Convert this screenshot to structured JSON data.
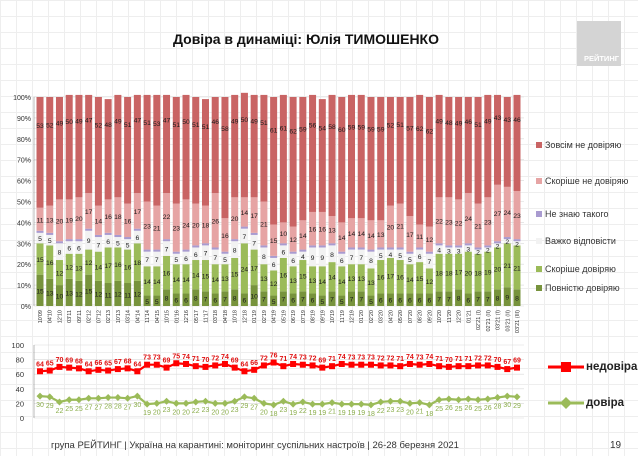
{
  "title": "Довіра в динаміці: Юлія ТИМОШЕНКО",
  "logo_text": "РЕЙТИНГ",
  "footer": "група РЕЙТИНГ | Україна на карантині: моніторинг суспільних настроїв | 26-28 березня 2021",
  "page_number": "19",
  "chart_data": [
    {
      "type": "bar",
      "stacked": true,
      "ylim": [
        0,
        100
      ],
      "yticks": [
        "0%",
        "10%",
        "20%",
        "30%",
        "40%",
        "50%",
        "60%",
        "70%",
        "80%",
        "90%",
        "100%"
      ],
      "grid": true,
      "legend_position": "right",
      "categories": [
        "10'09",
        "04'10",
        "12'10",
        "03'11",
        "09'11",
        "02'12",
        "07'12",
        "02'13",
        "10'13",
        "03'14",
        "04'14",
        "11'14",
        "04'15",
        "10'15",
        "01'16",
        "12'16",
        "05'17",
        "11'17",
        "03'18",
        "04'18",
        "10'18",
        "12'18",
        "01'19",
        "02'19",
        "04'19",
        "05'19",
        "06'19",
        "07'19",
        "08'19",
        "09'19",
        "10'19",
        "11'19",
        "12'19",
        "01'20",
        "02'20",
        "03'20",
        "04'20",
        "05'20",
        "07'20",
        "08'20",
        "09'20",
        "10'20",
        "11'20",
        "12'20",
        "01'21",
        "02'21 (I)",
        "02'21 (II)",
        "03'21 (I)",
        "03'21 (II)",
        "03'21 (III)"
      ],
      "series": [
        {
          "name": "Повністю довіряю",
          "color": "#77933c",
          "labeled": true,
          "values": [
            15,
            13,
            10,
            13,
            12,
            15,
            12,
            11,
            12,
            11,
            12,
            5,
            5,
            8,
            6,
            6,
            8,
            7,
            6,
            7,
            8,
            6,
            10,
            7,
            5,
            7,
            6,
            7,
            6,
            5,
            7,
            5,
            7,
            7,
            5,
            6,
            6,
            6,
            6,
            6,
            6,
            7,
            7,
            8,
            6,
            7,
            7,
            8,
            9,
            8
          ]
        },
        {
          "name": "Скоріше довіряю",
          "color": "#9bbb59",
          "labeled": true,
          "values": [
            15,
            16,
            12,
            12,
            13,
            12,
            14,
            17,
            16,
            16,
            18,
            14,
            14,
            16,
            14,
            14,
            14,
            15,
            14,
            13,
            15,
            24,
            17,
            13,
            12,
            16,
            13,
            15,
            13,
            14,
            14,
            14,
            13,
            13,
            13,
            16,
            17,
            16,
            14,
            15,
            12,
            18,
            18,
            17,
            20,
            18,
            19,
            20,
            21,
            21
          ]
        },
        {
          "name": "Важко відповісти",
          "color": "#f2f2f2",
          "labeled": true,
          "values": [
            5,
            5,
            8,
            6,
            6,
            9,
            7,
            6,
            5,
            5,
            6,
            7,
            7,
            7,
            5,
            6,
            6,
            7,
            7,
            5,
            8,
            7,
            7,
            8,
            6,
            6,
            6,
            4,
            9,
            9,
            8,
            6,
            7,
            7,
            8,
            5,
            4,
            5,
            5,
            6,
            7,
            4,
            3,
            3,
            3,
            2,
            2,
            2,
            2,
            2
          ]
        },
        {
          "name": "Не знаю такого",
          "color": "#a99bd0",
          "labeled": false,
          "values": [
            1,
            1,
            1,
            1,
            1,
            1,
            1,
            1,
            1,
            1,
            1,
            1,
            1,
            1,
            1,
            1,
            1,
            1,
            1,
            1,
            1,
            1,
            1,
            1,
            1,
            1,
            1,
            1,
            1,
            1,
            1,
            1,
            1,
            1,
            1,
            1,
            1,
            1,
            1,
            1,
            1,
            1,
            1,
            1,
            1,
            1,
            1,
            1,
            1,
            1
          ]
        },
        {
          "name": "Скоріше не довіряю",
          "color": "#e6a4a4",
          "labeled": true,
          "values": [
            11,
            13,
            20,
            19,
            20,
            17,
            14,
            16,
            18,
            16,
            17,
            23,
            21,
            22,
            23,
            24,
            20,
            18,
            26,
            16,
            20,
            14,
            17,
            21,
            15,
            10,
            12,
            14,
            16,
            16,
            13,
            14,
            14,
            14,
            14,
            13,
            20,
            21,
            17,
            11,
            12,
            22,
            23,
            22,
            24,
            21,
            23,
            27,
            24,
            23
          ]
        },
        {
          "name": "Зовсім не довіряю",
          "color": "#c96464",
          "labeled": true,
          "values": [
            53,
            52,
            49,
            50,
            49,
            47,
            52,
            48,
            49,
            51,
            47,
            51,
            53,
            47,
            51,
            50,
            51,
            51,
            46,
            58,
            49,
            50,
            49,
            51,
            61,
            61,
            62,
            59,
            56,
            54,
            58,
            60,
            59,
            59,
            59,
            59,
            52,
            51,
            57,
            62,
            62,
            49,
            48,
            49,
            46,
            51,
            49,
            43,
            43,
            46
          ]
        }
      ]
    },
    {
      "type": "line",
      "ylim": [
        0,
        100
      ],
      "yticks": [
        "0",
        "20",
        "40",
        "60",
        "80",
        "100"
      ],
      "grid": true,
      "legend_position": "right",
      "series": [
        {
          "name": "недовіра",
          "color": "#ff0000",
          "marker": "square",
          "values": [
            64,
            65,
            70,
            69,
            68,
            64,
            66,
            65,
            67,
            68,
            64,
            73,
            73,
            69,
            75,
            74,
            71,
            70,
            72,
            74,
            69,
            64,
            66,
            72,
            76,
            71,
            74,
            73,
            72,
            69,
            71,
            74,
            73,
            73,
            73,
            72,
            72,
            71,
            74,
            73,
            74,
            71,
            70,
            71,
            71,
            72,
            72,
            70,
            67,
            69
          ]
        },
        {
          "name": "довіра",
          "color": "#9bbb59",
          "marker": "diamond",
          "values": [
            30,
            29,
            22,
            25,
            25,
            27,
            27,
            28,
            28,
            27,
            30,
            19,
            20,
            23,
            20,
            20,
            22,
            23,
            20,
            20,
            23,
            29,
            27,
            20,
            18,
            23,
            19,
            22,
            19,
            19,
            21,
            19,
            19,
            19,
            18,
            22,
            23,
            23,
            20,
            21,
            18,
            25,
            26,
            25,
            26,
            25,
            26,
            28,
            30,
            29
          ]
        }
      ]
    }
  ]
}
